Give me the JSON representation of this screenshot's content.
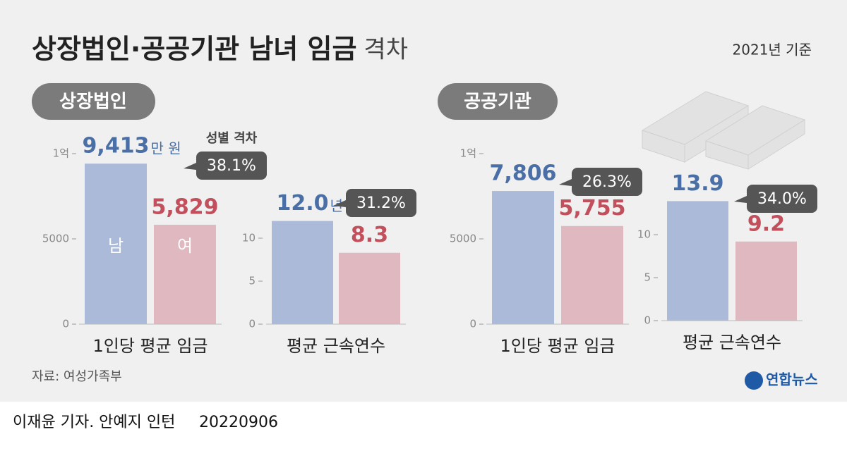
{
  "title": "상장법인·공공기관 남녀 임금",
  "title_suffix": "격차",
  "basis": "2021년 기준",
  "sections": [
    "상장법인",
    "공공기관"
  ],
  "source": "자료: 여성가족부",
  "logo": "연합뉴스",
  "credit": "이재윤 기자. 안예지 인턴",
  "date": "20220906",
  "chart_data": [
    {
      "type": "bar",
      "xlabel": "1인당 평균 임금",
      "categories": [
        "남",
        "여"
      ],
      "values": [
        9413,
        5829
      ],
      "value_labels": [
        "9,413",
        "5,829"
      ],
      "unit": "만 원",
      "colors": [
        "#aabad8",
        "#dfb8c0"
      ],
      "label_colors": [
        "#4a6fa6",
        "#c24f5c"
      ],
      "ylim": [
        0,
        10000
      ],
      "yticks": [
        0,
        5000,
        {
          "value": 10000,
          "label": "1억"
        }
      ],
      "annotation_title": "성별 격차",
      "annotation": "38.1%"
    },
    {
      "type": "bar",
      "xlabel": "평균 근속연수",
      "categories": [
        null,
        null
      ],
      "values": [
        12.0,
        8.3
      ],
      "value_labels": [
        "12.0",
        "8.3"
      ],
      "unit": "년",
      "colors": [
        "#aabad8",
        "#dfb8c0"
      ],
      "label_colors": [
        "#4a6fa6",
        "#c24f5c"
      ],
      "ylim": [
        0,
        12.5
      ],
      "yticks": [
        0,
        5,
        10
      ],
      "annotation": "31.2%"
    },
    {
      "type": "bar",
      "xlabel": "1인당 평균 임금",
      "categories": [
        null,
        null
      ],
      "values": [
        7806,
        5755
      ],
      "value_labels": [
        "7,806",
        "5,755"
      ],
      "colors": [
        "#aabad8",
        "#dfb8c0"
      ],
      "label_colors": [
        "#4a6fa6",
        "#c24f5c"
      ],
      "ylim": [
        0,
        10000
      ],
      "yticks": [
        0,
        5000,
        {
          "value": 10000,
          "label": "1억"
        }
      ],
      "annotation": "26.3%"
    },
    {
      "type": "bar",
      "xlabel": "평균 근속연수",
      "categories": [
        null,
        null
      ],
      "values": [
        13.9,
        9.2
      ],
      "value_labels": [
        "13.9",
        "9.2"
      ],
      "colors": [
        "#aabad8",
        "#dfb8c0"
      ],
      "label_colors": [
        "#4a6fa6",
        "#c24f5c"
      ],
      "ylim": [
        0,
        12.5
      ],
      "yticks": [
        0,
        5,
        10
      ],
      "annotation": "34.0%"
    }
  ]
}
